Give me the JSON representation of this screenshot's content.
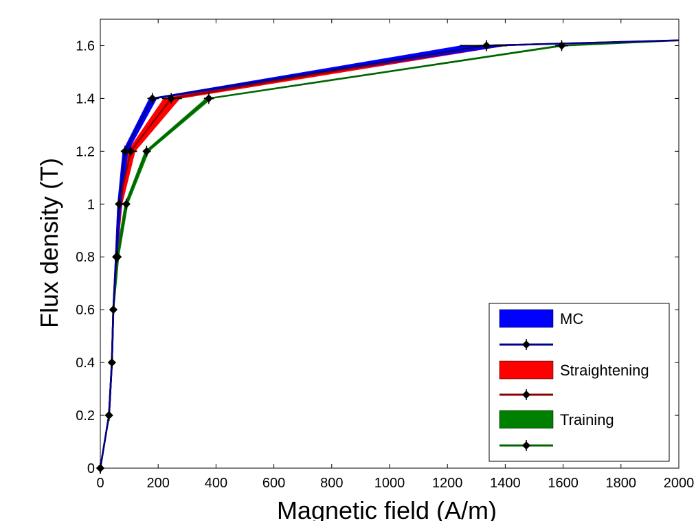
{
  "chart_data": {
    "type": "line",
    "xlabel": "Magnetic field (A/m)",
    "ylabel": "Flux density (T)",
    "xlim": [
      0,
      2000
    ],
    "ylim": [
      0,
      1.7
    ],
    "xticks": [
      0,
      200,
      400,
      600,
      800,
      1000,
      1200,
      1400,
      1600,
      1800,
      2000
    ],
    "xtick_labels": [
      "0",
      "200",
      "400",
      "600",
      "800",
      "1000",
      "1200",
      "1400",
      "1600",
      "1800",
      "2000"
    ],
    "yticks": [
      0,
      0.2,
      0.4,
      0.6,
      0.8,
      1.0,
      1.2,
      1.4,
      1.6
    ],
    "ytick_labels": [
      "0",
      "0.2",
      "0.4",
      "0.6",
      "0.8",
      "1",
      "1.2",
      "1.4",
      "1.6"
    ],
    "grid": false,
    "legend_position": "bottom-right",
    "series": [
      {
        "name": "MC",
        "color": "#0000ff",
        "line_color": "#00008b",
        "x": [
          0,
          30,
          40,
          45,
          55,
          65,
          85,
          180,
          1335,
          2000
        ],
        "y": [
          0,
          0.2,
          0.4,
          0.6,
          0.8,
          1.0,
          1.2,
          1.4,
          1.6,
          1.62
        ],
        "band_low": [
          0,
          28,
          38,
          43,
          52,
          60,
          78,
          170,
          1250,
          2000
        ],
        "band_high": [
          0,
          32,
          42,
          47,
          58,
          72,
          95,
          195,
          1400,
          2000
        ]
      },
      {
        "name": "Straightening",
        "color": "#ff0000",
        "line_color": "#8b0000",
        "x": [
          0,
          30,
          40,
          45,
          55,
          65,
          105,
          245,
          1335,
          2000
        ],
        "y": [
          0,
          0.2,
          0.4,
          0.6,
          0.8,
          1.0,
          1.2,
          1.4,
          1.6,
          1.62
        ],
        "band_low": [
          0,
          28,
          38,
          43,
          52,
          60,
          95,
          220,
          1260,
          2000
        ],
        "band_high": [
          0,
          32,
          42,
          47,
          58,
          75,
          120,
          275,
          1400,
          2000
        ]
      },
      {
        "name": "Training",
        "color": "#008000",
        "line_color": "#006400",
        "x": [
          0,
          30,
          40,
          45,
          60,
          90,
          160,
          375,
          1595,
          2000
        ],
        "y": [
          0,
          0.2,
          0.4,
          0.6,
          0.8,
          1.0,
          1.2,
          1.4,
          1.6,
          1.62
        ],
        "band_low": [
          0,
          28,
          38,
          43,
          55,
          85,
          155,
          365,
          1580,
          2000
        ],
        "band_high": [
          0,
          32,
          42,
          47,
          64,
          95,
          168,
          385,
          1610,
          2000
        ]
      }
    ],
    "legend": [
      "MC",
      "",
      "Straightening",
      "",
      "Training",
      ""
    ]
  }
}
